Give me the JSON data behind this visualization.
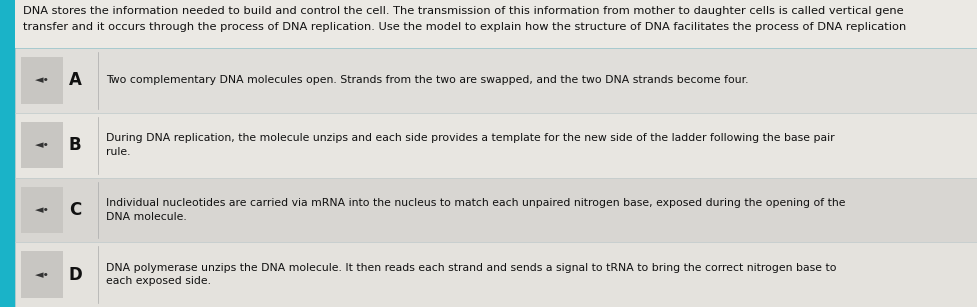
{
  "bg_color": "#1ab3c8",
  "card_bg": "#e8e6e1",
  "header_bg": "#ebe9e4",
  "row_bgs": [
    "#e0deda",
    "#e8e6e1",
    "#d8d6d2",
    "#e4e2dd"
  ],
  "icon_bg": "#c8c6c2",
  "header_text_line1": "DNA stores the information needed to build and control the cell. The transmission of this information from mother to daughter cells is called vertical gene",
  "header_text_line2": "transfer and it occurs through the process of DNA replication. Use the model to explain how the structure of DNA facilitates the process of DNA replication",
  "header_fontsize": 8.2,
  "rows": [
    {
      "letter": "A",
      "text": "Two complementary DNA molecules open. Strands from the two are swapped, and the two DNA strands become four."
    },
    {
      "letter": "B",
      "text": "During DNA replication, the molecule unzips and each side provides a template for the new side of the ladder following the base pair\nrule."
    },
    {
      "letter": "C",
      "text": "Individual nucleotides are carried via mRNA into the nucleus to match each unpaired nitrogen base, exposed during the opening of the\nDNA molecule."
    },
    {
      "letter": "D",
      "text": "DNA polymerase unzips the DNA molecule. It then reads each strand and sends a signal to tRNA to bring the correct nitrogen base to\neach exposed side."
    }
  ],
  "letter_fontsize": 12,
  "text_fontsize": 7.8,
  "icon_char": "◄",
  "icon_fontsize": 8
}
